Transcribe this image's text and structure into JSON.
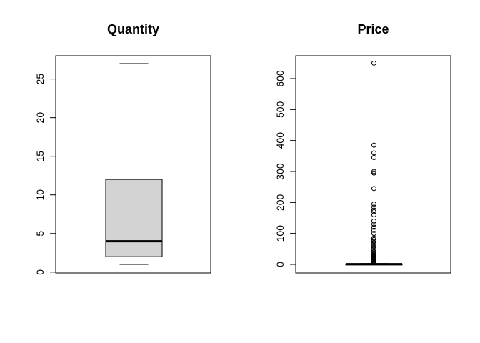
{
  "chart_data": [
    {
      "type": "boxplot",
      "title": "Quantity",
      "xlabel": "",
      "ylabel": "",
      "ylim": [
        0,
        27
      ],
      "yticks": [
        0,
        5,
        10,
        15,
        20,
        25
      ],
      "box": {
        "min": 1,
        "q1": 2,
        "median": 4,
        "q3": 12,
        "max": 27
      },
      "outliers": [],
      "fill": "#d3d3d3"
    },
    {
      "type": "boxplot",
      "title": "Price",
      "xlabel": "",
      "ylabel": "",
      "ylim": [
        0,
        650
      ],
      "yticks": [
        0,
        100,
        200,
        300,
        400,
        500,
        600
      ],
      "box": {
        "min": 0,
        "q1": 0.5,
        "median": 1,
        "q3": 1.5,
        "max": 3
      },
      "outliers": [
        5,
        6,
        8,
        10,
        12,
        14,
        16,
        18,
        20,
        22,
        24,
        26,
        28,
        30,
        33,
        36,
        40,
        45,
        50,
        55,
        60,
        65,
        70,
        75,
        80,
        85,
        100,
        110,
        120,
        130,
        140,
        160,
        170,
        175,
        185,
        195,
        245,
        295,
        300,
        345,
        360,
        385,
        650
      ],
      "fill": "#d3d3d3"
    }
  ]
}
